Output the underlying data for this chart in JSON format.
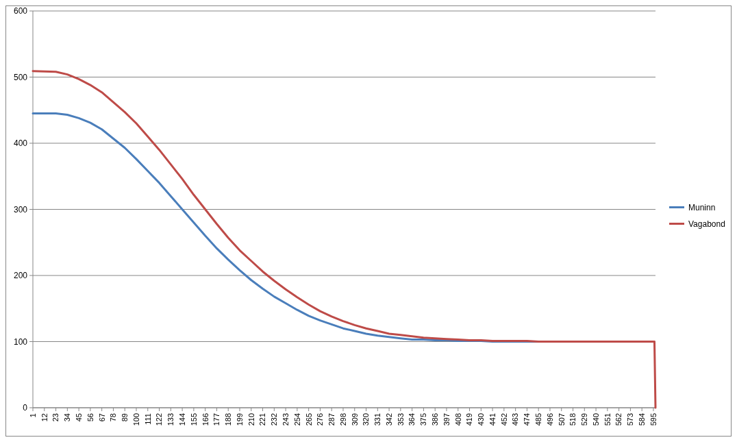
{
  "chart_data": {
    "type": "line",
    "x": [
      1,
      23,
      34,
      45,
      56,
      67,
      78,
      89,
      100,
      111,
      122,
      133,
      144,
      155,
      166,
      177,
      188,
      199,
      210,
      221,
      232,
      243,
      254,
      265,
      276,
      287,
      298,
      309,
      320,
      331,
      342,
      353,
      364,
      375,
      386,
      397,
      408,
      419,
      430,
      441,
      452,
      463,
      474,
      485,
      596,
      597
    ],
    "series": [
      {
        "name": "Muninn",
        "color": "#4a7ebb",
        "values": [
          445,
          445,
          443,
          438,
          431,
          421,
          407,
          393,
          376,
          358,
          340,
          320,
          300,
          280,
          260,
          241,
          224,
          208,
          193,
          180,
          168,
          158,
          148,
          139,
          132,
          126,
          120,
          116,
          112,
          109,
          107,
          105,
          103,
          103,
          102,
          102,
          101,
          101,
          101,
          100,
          100,
          100,
          100,
          100,
          null,
          null
        ]
      },
      {
        "name": "Vagabond",
        "color": "#be4b48",
        "values": [
          509,
          508,
          504,
          497,
          488,
          477,
          462,
          447,
          430,
          410,
          390,
          368,
          346,
          322,
          300,
          278,
          257,
          238,
          222,
          206,
          192,
          179,
          167,
          156,
          146,
          138,
          131,
          125,
          120,
          116,
          112,
          110,
          108,
          106,
          105,
          104,
          103,
          102,
          102,
          101,
          101,
          101,
          101,
          100,
          100,
          0
        ]
      }
    ],
    "xlim": [
      1,
      597
    ],
    "xticks": [
      1,
      12,
      23,
      34,
      45,
      56,
      67,
      78,
      89,
      100,
      111,
      122,
      133,
      144,
      155,
      166,
      177,
      188,
      199,
      210,
      221,
      232,
      243,
      254,
      265,
      276,
      287,
      298,
      309,
      320,
      331,
      342,
      353,
      364,
      375,
      386,
      397,
      408,
      419,
      430,
      441,
      452,
      463,
      474,
      485,
      496,
      507,
      518,
      529,
      540,
      551,
      562,
      573,
      584,
      595
    ],
    "ylim": [
      0,
      600
    ],
    "yticks": [
      0,
      100,
      200,
      300,
      400,
      500,
      600
    ],
    "grid": "y",
    "legend": "right",
    "marker": "none",
    "line_style": "solid"
  }
}
